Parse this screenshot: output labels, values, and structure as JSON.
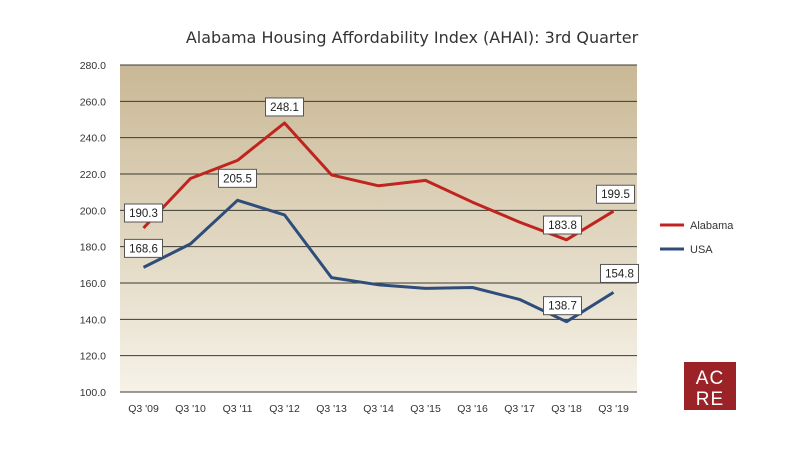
{
  "chart_data": {
    "type": "line",
    "title": "Alabama Housing Affordability Index (AHAI): 3rd Quarter",
    "xlabel": "",
    "ylabel": "",
    "categories": [
      "Q3 '09",
      "Q3 '10",
      "Q3 '11",
      "Q3 '12",
      "Q3 '13",
      "Q3 '14",
      "Q3 '15",
      "Q3 '16",
      "Q3 '17",
      "Q3 '18",
      "Q3 '19"
    ],
    "ylim": [
      100,
      280
    ],
    "yticks": [
      100,
      120,
      140,
      160,
      180,
      200,
      220,
      240,
      260,
      280
    ],
    "ytick_labels": [
      "100.0",
      "120.0",
      "140.0",
      "160.0",
      "180.0",
      "200.0",
      "220.0",
      "240.0",
      "260.0",
      "280.0"
    ],
    "grid": true,
    "legend_position": "right",
    "series": [
      {
        "name": "Alabama",
        "color": "#c0241f",
        "values": [
          190.3,
          217.5,
          227.5,
          248.1,
          219.5,
          213.5,
          216.5,
          204.5,
          193.5,
          183.8,
          199.5
        ],
        "data_labels": [
          {
            "index": 0,
            "text": "190.3"
          },
          {
            "index": 3,
            "text": "248.1"
          },
          {
            "index": 9,
            "text": "183.8"
          },
          {
            "index": 10,
            "text": "199.5"
          }
        ]
      },
      {
        "name": "USA",
        "color": "#2e4d7b",
        "values": [
          168.6,
          181.5,
          205.5,
          197.5,
          163.0,
          159.0,
          157.0,
          157.5,
          151.0,
          138.7,
          154.8
        ],
        "data_labels": [
          {
            "index": 0,
            "text": "168.6"
          },
          {
            "index": 2,
            "text": "205.5"
          },
          {
            "index": 9,
            "text": "138.7"
          },
          {
            "index": 10,
            "text": "154.8"
          }
        ]
      }
    ]
  },
  "logo": {
    "text_top": "AC",
    "text_bottom": "RE",
    "color": "#9b2226"
  },
  "colors": {
    "plot_top": "#c9b895",
    "plot_bottom": "#f6f2e8",
    "label_bg": "#ffffff"
  }
}
